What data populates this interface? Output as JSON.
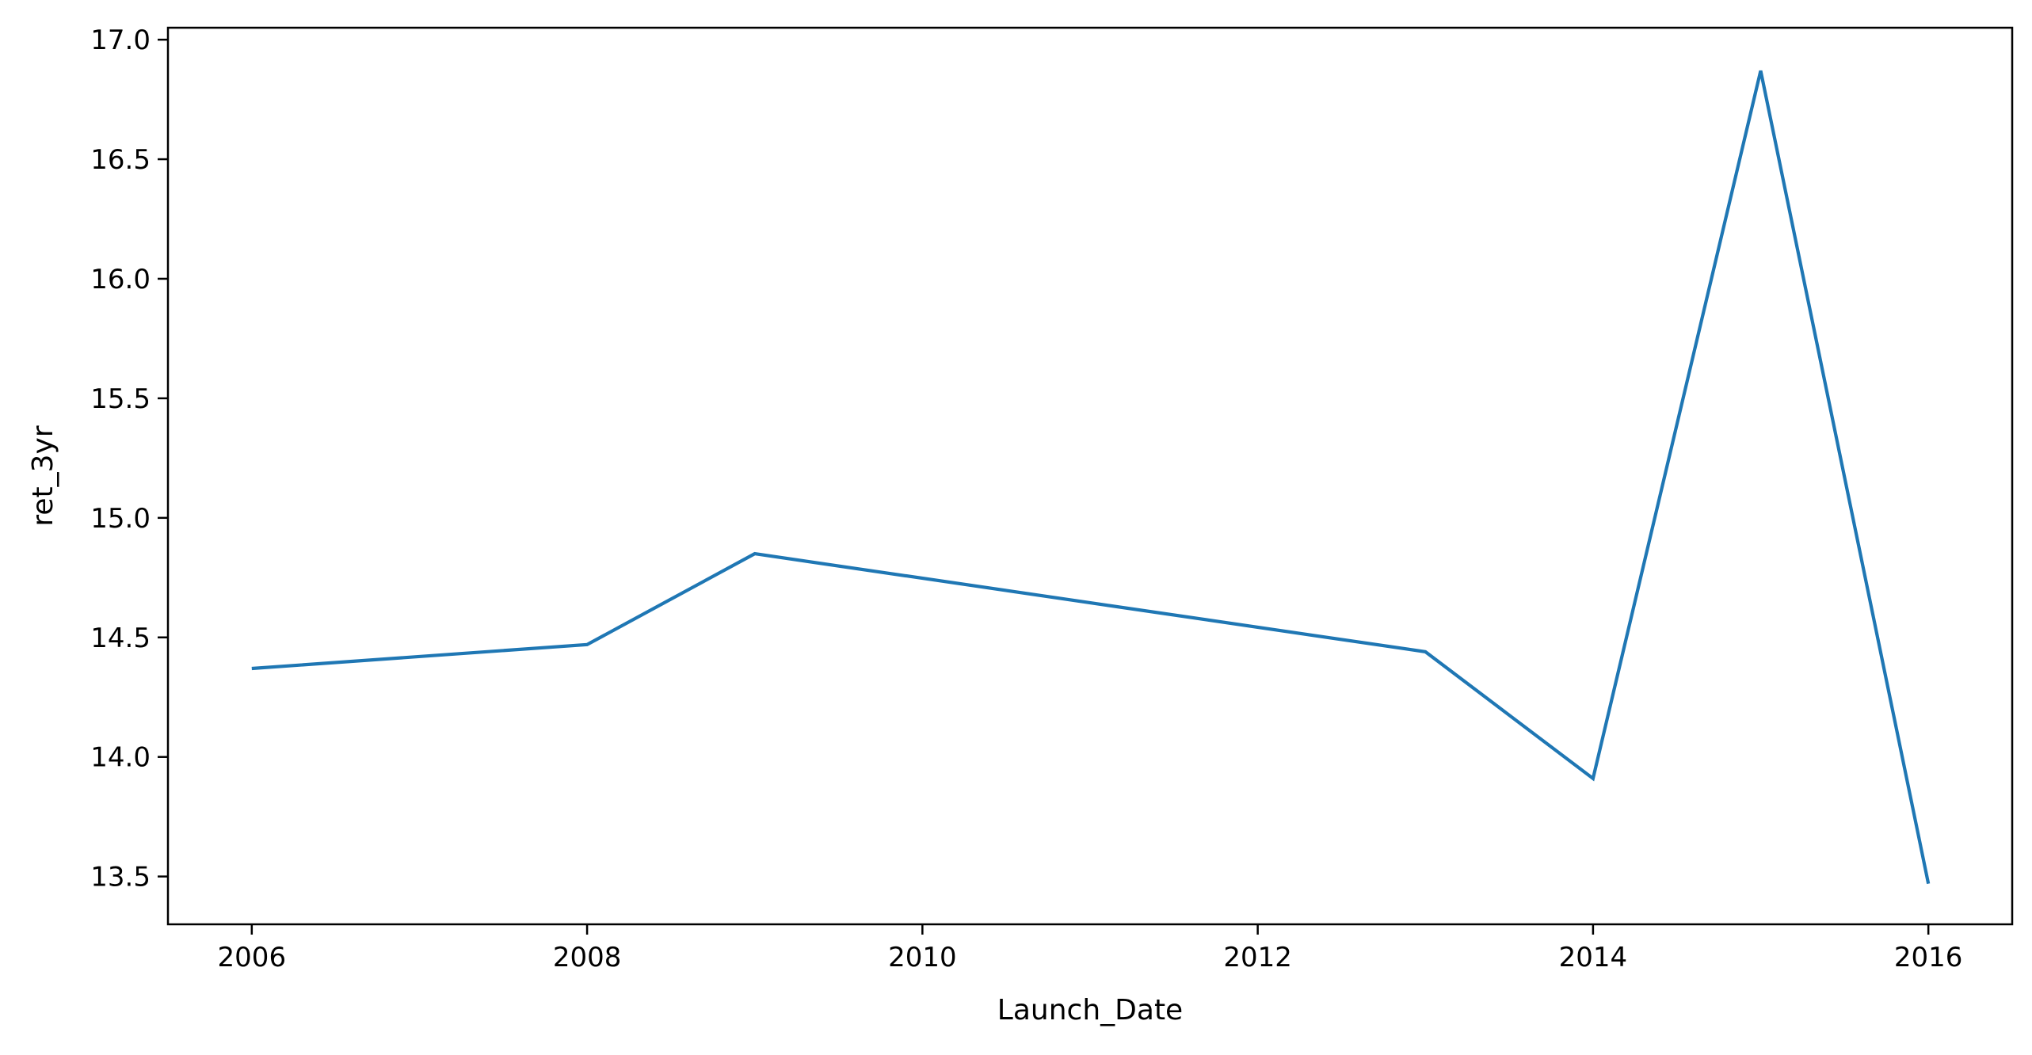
{
  "chart_data": {
    "type": "line",
    "title": "",
    "xlabel": "Launch_Date",
    "ylabel": "ret_3yr",
    "xlim": [
      2005.5,
      2016.5
    ],
    "ylim": [
      13.3,
      17.05
    ],
    "x_ticks": [
      2006,
      2008,
      2010,
      2012,
      2014,
      2016
    ],
    "x_tick_labels": [
      "2006",
      "2008",
      "2010",
      "2012",
      "2014",
      "2016"
    ],
    "y_ticks": [
      13.5,
      14.0,
      14.5,
      15.0,
      15.5,
      16.0,
      16.5,
      17.0
    ],
    "y_tick_labels": [
      "13.5",
      "14.0",
      "14.5",
      "15.0",
      "15.5",
      "16.0",
      "16.5",
      "17.0"
    ],
    "grid": false,
    "legend": "none",
    "colors": {
      "line": "#1f77b4",
      "axes": "#000000",
      "background": "#ffffff"
    },
    "series": [
      {
        "x": [
          2006,
          2008,
          2009,
          2013,
          2014,
          2015,
          2016
        ],
        "y": [
          14.37,
          14.47,
          14.85,
          14.44,
          13.91,
          16.87,
          13.47
        ]
      }
    ]
  }
}
